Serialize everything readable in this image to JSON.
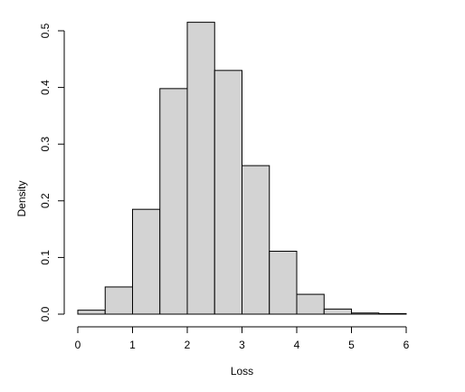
{
  "chart_data": {
    "type": "bar",
    "subtype": "histogram",
    "xlabel": "Loss",
    "ylabel": "Density",
    "bins": [
      {
        "start": 0.0,
        "end": 0.5,
        "density": 0.007
      },
      {
        "start": 0.5,
        "end": 1.0,
        "density": 0.048
      },
      {
        "start": 1.0,
        "end": 1.5,
        "density": 0.185
      },
      {
        "start": 1.5,
        "end": 2.0,
        "density": 0.398
      },
      {
        "start": 2.0,
        "end": 2.5,
        "density": 0.515
      },
      {
        "start": 2.5,
        "end": 3.0,
        "density": 0.43
      },
      {
        "start": 3.0,
        "end": 3.5,
        "density": 0.262
      },
      {
        "start": 3.5,
        "end": 4.0,
        "density": 0.111
      },
      {
        "start": 4.0,
        "end": 4.5,
        "density": 0.035
      },
      {
        "start": 4.5,
        "end": 5.0,
        "density": 0.009
      },
      {
        "start": 5.0,
        "end": 5.5,
        "density": 0.002
      },
      {
        "start": 5.5,
        "end": 6.0,
        "density": 0.001
      }
    ],
    "xlim": [
      0,
      6
    ],
    "ylim": [
      0,
      0.5
    ],
    "xticks": [
      "0",
      "1",
      "2",
      "3",
      "4",
      "5",
      "6"
    ],
    "yticks": [
      "0.0",
      "0.1",
      "0.2",
      "0.3",
      "0.4",
      "0.5"
    ],
    "bar_fill": "#d3d3d3",
    "bar_stroke": "#000000",
    "grid": false,
    "legend": "none"
  }
}
